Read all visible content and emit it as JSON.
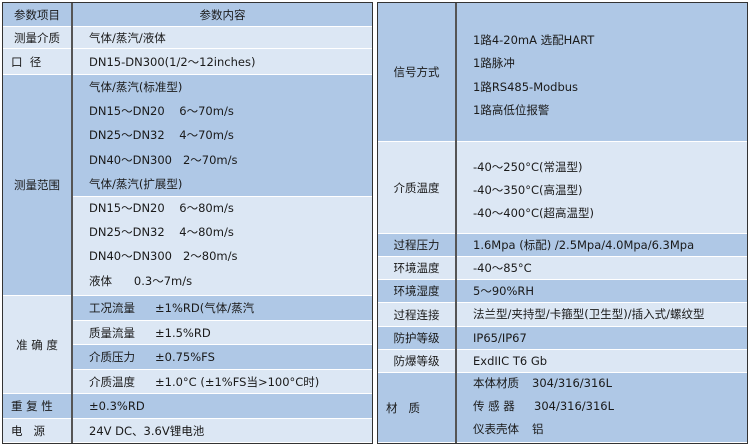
{
  "left": {
    "header": {
      "label": "参数项目",
      "content": "参数内容"
    },
    "medium": {
      "label": "测量介质",
      "value": "气体/蒸汽/液体"
    },
    "diameter": {
      "label": "口  径",
      "value": "DN15-DN300(1/2～12inches)"
    },
    "range": {
      "label": "测量范围",
      "lines": [
        "气体/蒸汽(标准型)",
        "DN15～DN20    6～70m/s",
        "DN25～DN32    4～70m/s",
        "DN40～DN300   2～70m/s",
        "气体/蒸汽(扩展型)",
        "DN15～DN20    6～80m/s",
        "DN25～DN32    4～80m/s",
        "DN40～DN300   2～80m/s",
        "液体      0.3～7m/s"
      ]
    },
    "accuracy": {
      "label": "准 确 度",
      "rows": [
        {
          "name": "工况流量",
          "value": "±1%RD(气体/蒸汽"
        },
        {
          "name": "质量流量",
          "value": "±1.5%RD"
        },
        {
          "name": "介质压力",
          "value": "±0.75%FS"
        },
        {
          "name": "介质温度",
          "value": "±1.0°C (±1%FS当>100°C时)"
        }
      ]
    },
    "repeatability": {
      "label": "重 复 性",
      "value": "±0.3%RD"
    },
    "power": {
      "label": "电   源",
      "value": "24V DC、3.6V锂电池"
    }
  },
  "right": {
    "signal": {
      "label": "信号方式",
      "lines": [
        "1路4-20mA 选配HART",
        "1路脉冲",
        "1路RS485-Modbus",
        "1路高低位报警"
      ]
    },
    "medium_temp": {
      "label": "介质温度",
      "lines": [
        "-40～250°C(常温型)",
        "-40～350°C(高温型)",
        "-40～400°C(超高温型)"
      ]
    },
    "process_pressure": {
      "label": "过程压力",
      "value": "1.6Mpa (标配) /2.5Mpa/4.0Mpa/6.3Mpa"
    },
    "ambient_temp": {
      "label": "环境温度",
      "value": "-40～85°C"
    },
    "ambient_humidity": {
      "label": "环境湿度",
      "value": "5～90%RH"
    },
    "process_connection": {
      "label": "过程连接",
      "value": "法兰型/夹持型/卡箍型(卫生型)/插入式/螺纹型"
    },
    "protection": {
      "label": "防护等级",
      "value": "IP65/IP67"
    },
    "explosion": {
      "label": "防爆等级",
      "value": "ExdIIC T6 Gb"
    },
    "material": {
      "label": "材   质",
      "rows": [
        {
          "name": "本体材质",
          "value": "304/316/316L"
        },
        {
          "name": "传 感 器",
          "value": "304/316/316L"
        },
        {
          "name": "仪表壳体",
          "value": "铝"
        }
      ]
    }
  }
}
